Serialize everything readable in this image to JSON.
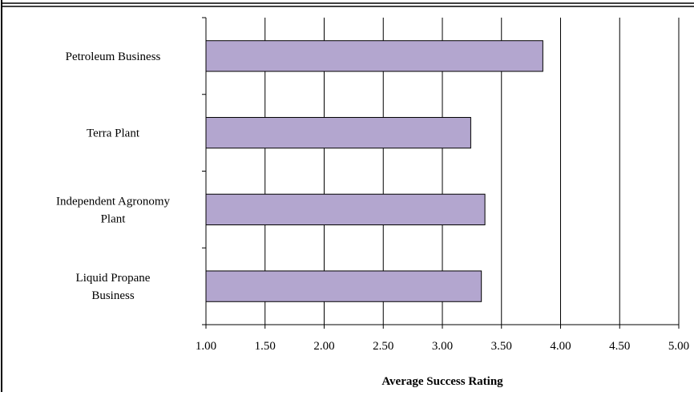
{
  "chart_data": {
    "type": "bar",
    "orientation": "horizontal",
    "title": "",
    "xlabel": "Average Success Rating",
    "ylabel": "",
    "categories": [
      [
        "Petroleum Business"
      ],
      [
        "Terra Plant"
      ],
      [
        "Independent Agronomy",
        "Plant"
      ],
      [
        "Liquid Propane",
        "Business"
      ]
    ],
    "values": [
      3.85,
      3.24,
      3.36,
      3.33
    ],
    "xlim": [
      1.0,
      5.0
    ],
    "xticks": [
      "1.00",
      "1.50",
      "2.00",
      "2.50",
      "3.00",
      "3.50",
      "4.00",
      "4.50",
      "5.00"
    ],
    "xtick_values": [
      1.0,
      1.5,
      2.0,
      2.5,
      3.0,
      3.5,
      4.0,
      4.5,
      5.0
    ],
    "grid": "vertical",
    "legend": "none",
    "colors": {
      "bar_fill": "#b3a6cf",
      "bar_stroke": "#000000",
      "grid": "#000000",
      "border": "#000000"
    }
  }
}
